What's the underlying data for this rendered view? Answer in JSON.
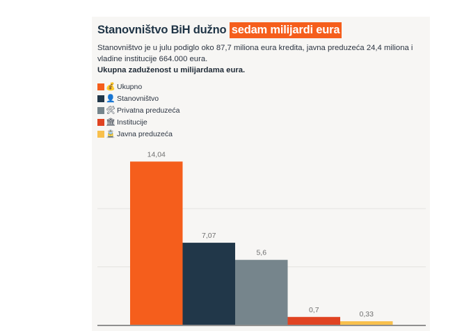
{
  "header": {
    "title_plain": "Stanovništvo BiH dužno",
    "title_highlight": "sedam milijardi eura",
    "highlight_color": "#f55e1c",
    "description": "Stanovništvo je u julu podiglo oko 87,7 miliona eura kredita, javna preduzeća 24,4 miliona i vladine institucije 664.000 eura.",
    "unit_note": "Ukupna zaduženost u milijardama eura."
  },
  "legend": [
    {
      "label": "Ukupno",
      "icon": "money-bag-icon",
      "glyph": "💰",
      "color": "#f55e1c"
    },
    {
      "label": "Stanovništvo",
      "icon": "person-icon",
      "glyph": "👤",
      "color": "#213749"
    },
    {
      "label": "Privatna preduzeća",
      "icon": "hammer-wrench-icon",
      "glyph": "🛠",
      "color": "#76858c"
    },
    {
      "label": "Institucije",
      "icon": "building-icon",
      "glyph": "🏛",
      "color": "#e04322"
    },
    {
      "label": "Javna preduzeća",
      "icon": "tram-icon",
      "glyph": "🚊",
      "color": "#f8c04d"
    }
  ],
  "chart_data": {
    "type": "bar",
    "title": "Stanovništvo BiH dužno sedam milijardi eura",
    "categories": [
      "Ukupno",
      "Stanovništvo",
      "Privatna preduzeća",
      "Institucije",
      "Javna preduzeća"
    ],
    "values": [
      14.04,
      7.07,
      5.6,
      0.7,
      0.33
    ],
    "value_labels": [
      "14,04",
      "7,07",
      "5,6",
      "0,7",
      "0,33"
    ],
    "colors": [
      "#f55e1c",
      "#213749",
      "#76858c",
      "#e04322",
      "#f8c04d"
    ],
    "ylabel": "Ukupna zaduženost u milijardama eura.",
    "xlabel": "",
    "ylim": [
      0,
      14.04
    ],
    "gridlines": [
      5,
      10
    ],
    "grid": true,
    "legend_position": "top-left"
  }
}
